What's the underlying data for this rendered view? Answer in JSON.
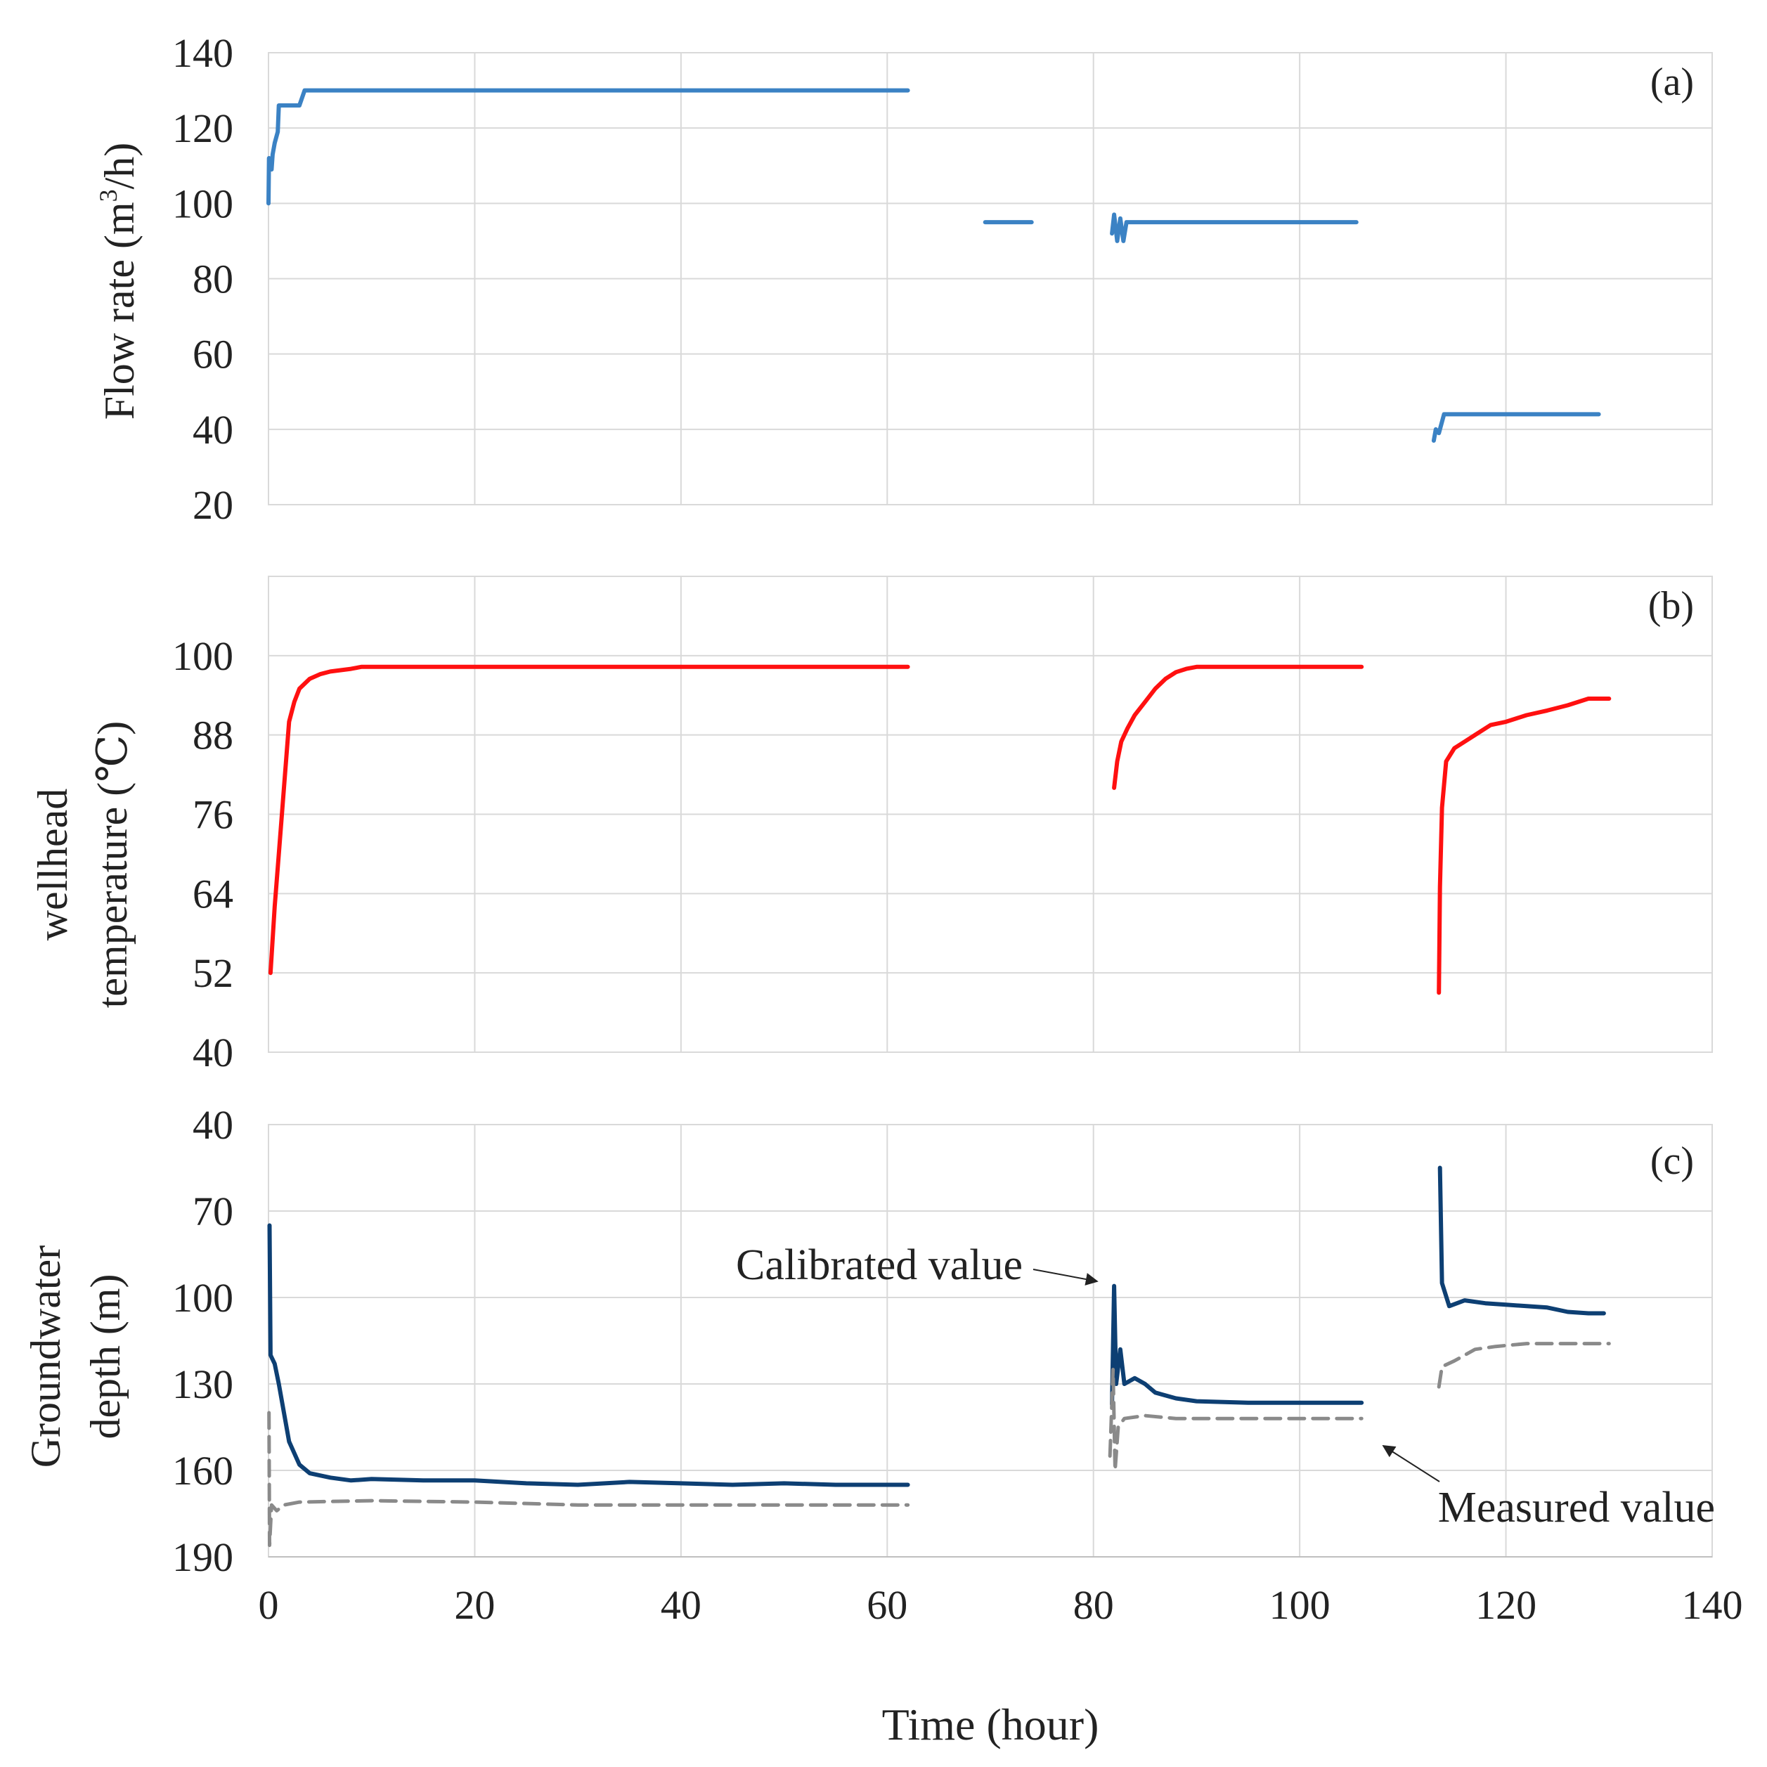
{
  "chart_data": [
    {
      "id": "a",
      "type": "line",
      "panel_label": "(a)",
      "ylabel": "Flow rate (m³/h)",
      "ylabel_main": "Flow rate (m",
      "ylabel_sup": "3",
      "ylabel_tail": "/h)",
      "ylim": [
        20,
        140
      ],
      "yticks": [
        20,
        40,
        60,
        80,
        100,
        120,
        140
      ],
      "xlim": [
        0,
        140
      ],
      "grid": true,
      "series": [
        {
          "name": "Flow rate",
          "color": "#3b82c4",
          "dashed": false,
          "segments": [
            [
              [
                0,
                100
              ],
              [
                0.05,
                112
              ],
              [
                0.3,
                109
              ],
              [
                0.4,
                113
              ],
              [
                0.6,
                116
              ],
              [
                0.9,
                119
              ],
              [
                1.0,
                126
              ],
              [
                3.0,
                126
              ],
              [
                3.5,
                130
              ],
              [
                62,
                130
              ]
            ],
            [
              [
                69.5,
                95
              ],
              [
                74,
                95
              ]
            ],
            [
              [
                81.8,
                92
              ],
              [
                82.0,
                97
              ],
              [
                82.3,
                90
              ],
              [
                82.6,
                96
              ],
              [
                82.9,
                90
              ],
              [
                83.2,
                95
              ],
              [
                105.5,
                95
              ]
            ],
            [
              [
                113,
                37
              ],
              [
                113.2,
                40
              ],
              [
                113.5,
                39
              ],
              [
                114,
                44
              ],
              [
                129,
                44
              ]
            ]
          ]
        }
      ]
    },
    {
      "id": "b",
      "type": "line",
      "panel_label": "(b)",
      "ylabel_line1": "wellhead",
      "ylabel_line2": "temperature (℃)",
      "ylim": [
        40,
        112
      ],
      "yticks": [
        40,
        52,
        64,
        76,
        88,
        100
      ],
      "xlim": [
        0,
        140
      ],
      "grid": true,
      "series": [
        {
          "name": "Wellhead temperature",
          "color": "#ff1010",
          "dashed": false,
          "segments": [
            [
              [
                0.2,
                52
              ],
              [
                0.6,
                62
              ],
              [
                1.0,
                70
              ],
              [
                1.5,
                80
              ],
              [
                2.0,
                90
              ],
              [
                2.5,
                93
              ],
              [
                3.0,
                95
              ],
              [
                4.0,
                96.5
              ],
              [
                5.0,
                97.2
              ],
              [
                6.0,
                97.6
              ],
              [
                7.0,
                97.8
              ],
              [
                8.0,
                98.0
              ],
              [
                9.0,
                98.3
              ],
              [
                62,
                98.3
              ]
            ],
            [
              [
                82.0,
                80
              ],
              [
                82.3,
                84
              ],
              [
                82.7,
                87
              ],
              [
                83.3,
                89
              ],
              [
                84.0,
                91
              ],
              [
                85.0,
                93
              ],
              [
                86.0,
                95
              ],
              [
                87.0,
                96.5
              ],
              [
                88.0,
                97.5
              ],
              [
                89.0,
                98.0
              ],
              [
                90.0,
                98.3
              ],
              [
                106,
                98.3
              ]
            ],
            [
              [
                113.5,
                49
              ],
              [
                113.6,
                65
              ],
              [
                113.8,
                77
              ],
              [
                114.2,
                84
              ],
              [
                115.0,
                86
              ],
              [
                116.0,
                87
              ],
              [
                117.0,
                88
              ],
              [
                118.5,
                89.5
              ],
              [
                120.0,
                90
              ],
              [
                122.0,
                91
              ],
              [
                124.0,
                91.7
              ],
              [
                126.0,
                92.5
              ],
              [
                128.0,
                93.5
              ],
              [
                130.0,
                93.5
              ]
            ]
          ]
        }
      ]
    },
    {
      "id": "c",
      "type": "line",
      "panel_label": "(c)",
      "ylabel_line1": "Groundwater",
      "ylabel_line2": "depth (m)",
      "ylim": [
        40,
        190
      ],
      "yaxis_inverted": true,
      "yticks": [
        40,
        70,
        100,
        130,
        160,
        190
      ],
      "xlim": [
        0,
        140
      ],
      "xticks": [
        0,
        20,
        40,
        60,
        80,
        100,
        120,
        140
      ],
      "xlabel": "Time (hour)",
      "grid": true,
      "series": [
        {
          "name": "Calibrated value",
          "color": "#0d3f73",
          "dashed": false,
          "segments": [
            [
              [
                0.1,
                75
              ],
              [
                0.2,
                120
              ],
              [
                0.6,
                123
              ],
              [
                1.0,
                130
              ],
              [
                1.5,
                140
              ],
              [
                2.0,
                150
              ],
              [
                3.0,
                158
              ],
              [
                4.0,
                161
              ],
              [
                6.0,
                162.5
              ],
              [
                8.0,
                163.5
              ],
              [
                10.0,
                163
              ],
              [
                15.0,
                163.5
              ],
              [
                20.0,
                163.5
              ],
              [
                25.0,
                164.5
              ],
              [
                30.0,
                165
              ],
              [
                35.0,
                164
              ],
              [
                40.0,
                164.5
              ],
              [
                45.0,
                165
              ],
              [
                50.0,
                164.5
              ],
              [
                55.0,
                165
              ],
              [
                60.0,
                165
              ],
              [
                62.0,
                165
              ]
            ],
            [
              [
                81.8,
                137
              ],
              [
                82.0,
                96
              ],
              [
                82.2,
                130
              ],
              [
                82.6,
                118
              ],
              [
                83.0,
                130
              ],
              [
                84.0,
                128
              ],
              [
                85.0,
                130
              ],
              [
                86.0,
                133
              ],
              [
                88.0,
                135
              ],
              [
                90.0,
                136
              ],
              [
                95.0,
                136.5
              ],
              [
                100.0,
                136.5
              ],
              [
                106.0,
                136.5
              ]
            ],
            [
              [
                113.6,
                55
              ],
              [
                113.8,
                95
              ],
              [
                114.5,
                103
              ],
              [
                116.0,
                101
              ],
              [
                118.0,
                102
              ],
              [
                120.0,
                102.5
              ],
              [
                122.0,
                103
              ],
              [
                124.0,
                103.5
              ],
              [
                126.0,
                105
              ],
              [
                128.0,
                105.5
              ],
              [
                129.5,
                105.5
              ]
            ]
          ]
        },
        {
          "name": "Measured value",
          "color": "#8a8a8a",
          "dashed": true,
          "segments": [
            [
              [
                0.05,
                140
              ],
              [
                0.1,
                186
              ],
              [
                0.3,
                172
              ],
              [
                0.8,
                174
              ],
              [
                1.5,
                172
              ],
              [
                3.0,
                171
              ],
              [
                10.0,
                170.5
              ],
              [
                20.0,
                171
              ],
              [
                30.0,
                172
              ],
              [
                40.0,
                172
              ],
              [
                50.0,
                172
              ],
              [
                62.0,
                172
              ]
            ],
            [
              [
                81.6,
                155
              ],
              [
                81.9,
                125
              ],
              [
                82.1,
                160
              ],
              [
                82.4,
                145
              ],
              [
                83.0,
                142
              ],
              [
                85.0,
                141
              ],
              [
                88.0,
                142
              ],
              [
                100.0,
                142
              ],
              [
                106.0,
                142
              ]
            ],
            [
              [
                113.5,
                131
              ],
              [
                113.8,
                124
              ],
              [
                115.0,
                122
              ],
              [
                117.0,
                118
              ],
              [
                119.0,
                117
              ],
              [
                122.0,
                116
              ],
              [
                125.0,
                116
              ],
              [
                130.0,
                116
              ]
            ]
          ]
        }
      ],
      "annotations": [
        {
          "text": "Calibrated value",
          "points_to": [
            81.8,
            96
          ]
        },
        {
          "text": "Measured value",
          "points_to": [
            108.5,
            148
          ]
        }
      ]
    }
  ]
}
